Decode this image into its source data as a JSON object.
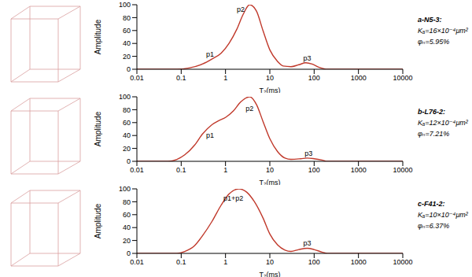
{
  "chart_data": [
    {
      "type": "line",
      "title": "a-N5-3:",
      "subtitle": [
        "Kₐ=16×10⁻⁴μm²",
        "φₙ=5.95%"
      ],
      "xlabel": "T₂(ms)",
      "ylabel": "Amplitude",
      "log": "x",
      "grid": false,
      "color": "#c0392b",
      "x": [
        0.01,
        0.08,
        0.15,
        0.3,
        0.5,
        0.8,
        1.2,
        1.8,
        2.5,
        3.5,
        5,
        7,
        10,
        15,
        20,
        30,
        45,
        65,
        90,
        130,
        200,
        10000
      ],
      "values": [
        0,
        0,
        2,
        8,
        16,
        25,
        40,
        62,
        85,
        100,
        90,
        60,
        30,
        12,
        5,
        4,
        7,
        10,
        8,
        3,
        0,
        0
      ],
      "xlim": [
        0.01,
        10000
      ],
      "xticks": [
        0.01,
        0.1,
        1,
        10,
        100,
        1000,
        10000
      ],
      "ylim": [
        0,
        100
      ],
      "yticks": [
        0,
        20,
        40,
        60,
        80,
        100
      ],
      "annotations": [
        {
          "text": "p1",
          "x": 0.45,
          "y": 24
        },
        {
          "text": "p2",
          "x": 2.2,
          "y": 93
        },
        {
          "text": "p3",
          "x": 70,
          "y": 17
        }
      ]
    },
    {
      "type": "line",
      "title": "b-L76-2:",
      "subtitle": [
        "Kₐ=12×10⁻⁴μm²",
        "φₙ=7.21%"
      ],
      "xlabel": "T₂(ms)",
      "ylabel": "Amplitude",
      "log": "x",
      "grid": false,
      "color": "#c0392b",
      "x": [
        0.01,
        0.05,
        0.08,
        0.12,
        0.2,
        0.3,
        0.5,
        0.7,
        1,
        1.5,
        2.2,
        3.5,
        5,
        7,
        10,
        15,
        22,
        30,
        50,
        70,
        100,
        150,
        200,
        10000
      ],
      "values": [
        0,
        0,
        3,
        10,
        25,
        42,
        57,
        63,
        68,
        78,
        92,
        100,
        88,
        62,
        35,
        15,
        5,
        3,
        4,
        5,
        4,
        2,
        0,
        0
      ],
      "xlim": [
        0.01,
        10000
      ],
      "xticks": [
        0.01,
        0.1,
        1,
        10,
        100,
        1000,
        10000
      ],
      "ylim": [
        0,
        100
      ],
      "yticks": [
        0,
        20,
        40,
        60,
        80,
        100
      ],
      "annotations": [
        {
          "text": "p1",
          "x": 0.45,
          "y": 40
        },
        {
          "text": "p2",
          "x": 3.5,
          "y": 82
        },
        {
          "text": "p3",
          "x": 75,
          "y": 13
        }
      ]
    },
    {
      "type": "line",
      "title": "c-F41-2:",
      "subtitle": [
        "Kₐ=10×10⁻⁴μm²",
        "φₙ=6.37%"
      ],
      "xlabel": "T₂(ms)",
      "ylabel": "Amplitude",
      "log": "x",
      "grid": false,
      "color": "#c0392b",
      "x": [
        0.01,
        0.08,
        0.12,
        0.2,
        0.3,
        0.5,
        0.8,
        1.2,
        2,
        3,
        4.5,
        7,
        10,
        15,
        22,
        30,
        45,
        70,
        100,
        150,
        200,
        10000
      ],
      "values": [
        0,
        0,
        3,
        12,
        27,
        50,
        75,
        92,
        100,
        95,
        80,
        55,
        30,
        13,
        5,
        3,
        6,
        8,
        6,
        2,
        0,
        0
      ],
      "xlim": [
        0.01,
        10000
      ],
      "xticks": [
        0.01,
        0.1,
        1,
        10,
        100,
        1000,
        10000
      ],
      "ylim": [
        0,
        100
      ],
      "yticks": [
        0,
        20,
        40,
        60,
        80,
        100
      ],
      "annotations": [
        {
          "text": "p1+p2",
          "x": 1.5,
          "y": 86
        },
        {
          "text": "p3",
          "x": 70,
          "y": 16
        }
      ]
    }
  ]
}
